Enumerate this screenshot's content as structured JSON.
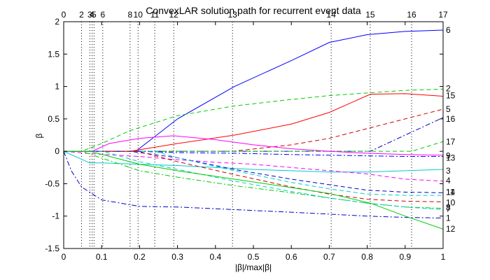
{
  "chart_data": {
    "type": "line",
    "title": "ConvexLAR solution path for recurrent event data",
    "xlabel": "|β|/max|β|",
    "ylabel": "β",
    "xlim": [
      0,
      1
    ],
    "ylim": [
      -1.5,
      2
    ],
    "x_ticks": [
      0,
      0.1,
      0.2,
      0.3,
      0.4,
      0.5,
      0.6,
      0.7,
      0.8,
      0.9,
      1
    ],
    "x_tick_labels": [
      "0",
      "0.1",
      "0.2",
      "0.3",
      "0.4",
      "0.5",
      "0.6",
      "0.7",
      "0.8",
      "0.9",
      "1"
    ],
    "y_ticks": [
      -1.5,
      -1,
      -0.5,
      0,
      0.5,
      1,
      1.5,
      2
    ],
    "y_tick_labels": [
      "-1.5",
      "-1",
      "-0.5",
      "0",
      "0.5",
      "1",
      "1.5",
      "2"
    ],
    "grid": false,
    "legend": "none",
    "step_lines": [
      {
        "x": 0,
        "label": "0"
      },
      {
        "x": 0.047,
        "label": "2"
      },
      {
        "x": 0.069,
        "label": "3"
      },
      {
        "x": 0.075,
        "label": "4"
      },
      {
        "x": 0.08,
        "label": "5"
      },
      {
        "x": 0.103,
        "label": "6"
      },
      {
        "x": 0.175,
        "label": "8"
      },
      {
        "x": 0.196,
        "label": "10"
      },
      {
        "x": 0.24,
        "label": "11"
      },
      {
        "x": 0.29,
        "label": "12"
      },
      {
        "x": 0.445,
        "label": "13"
      },
      {
        "x": 0.705,
        "label": "14"
      },
      {
        "x": 0.808,
        "label": "15"
      },
      {
        "x": 0.917,
        "label": "16"
      },
      {
        "x": 1.0,
        "label": "17"
      }
    ],
    "series": [
      {
        "label": "6",
        "color": "#0000ff",
        "dash": "solid",
        "x": [
          0,
          0.19,
          0.3,
          0.45,
          0.6,
          0.7,
          0.8,
          0.9,
          1.0
        ],
        "y": [
          0,
          0,
          0.5,
          1.0,
          1.4,
          1.68,
          1.8,
          1.85,
          1.87
        ]
      },
      {
        "label": "2",
        "color": "#00cc00",
        "dash": "dashed",
        "x": [
          0,
          0.047,
          0.1,
          0.175,
          0.3,
          0.45,
          0.6,
          0.7,
          0.8,
          0.9,
          1.0
        ],
        "y": [
          0,
          0,
          0.12,
          0.32,
          0.55,
          0.7,
          0.8,
          0.86,
          0.9,
          0.94,
          0.96
        ]
      },
      {
        "label": "15",
        "color": "#ff0000",
        "dash": "solid",
        "x": [
          0,
          0.175,
          0.3,
          0.45,
          0.6,
          0.7,
          0.808,
          0.9,
          1.0
        ],
        "y": [
          0,
          0,
          0.12,
          0.25,
          0.42,
          0.6,
          0.88,
          0.89,
          0.85
        ]
      },
      {
        "label": "5",
        "color": "#cc0000",
        "dash": "dashed",
        "x": [
          0,
          0.445,
          0.6,
          0.7,
          0.8,
          0.9,
          1.0
        ],
        "y": [
          0,
          0,
          0.1,
          0.2,
          0.35,
          0.5,
          0.65
        ]
      },
      {
        "label": "16",
        "color": "#0000cc",
        "dash": "dashdot",
        "x": [
          0,
          0.808,
          0.9,
          1.0
        ],
        "y": [
          0,
          0,
          0.25,
          0.52
        ]
      },
      {
        "label": "17",
        "color": "#00cc00",
        "dash": "dashed",
        "x": [
          0,
          0.917,
          1.0
        ],
        "y": [
          0,
          0,
          0.15
        ]
      },
      {
        "label": "9",
        "color": "#ff00ff",
        "dash": "solid",
        "x": [
          0,
          0.075,
          0.12,
          0.2,
          0.29,
          0.4,
          0.5,
          0.6,
          0.7,
          0.8,
          0.9,
          1.0
        ],
        "y": [
          0,
          0,
          0.12,
          0.2,
          0.24,
          0.18,
          0.1,
          0.04,
          0,
          -0.03,
          -0.05,
          -0.06
        ]
      },
      {
        "label": "13",
        "color": "#0000ff",
        "dash": "dashdot",
        "x": [
          0,
          0.196,
          0.3,
          0.45,
          0.6,
          0.7,
          0.8,
          0.9,
          1.0
        ],
        "y": [
          0,
          0,
          -0.02,
          -0.03,
          -0.05,
          -0.06,
          -0.07,
          -0.08,
          -0.08
        ]
      },
      {
        "label": "3",
        "color": "#00cccc",
        "dash": "solid",
        "x": [
          0,
          0.069,
          0.1,
          0.2,
          0.3,
          0.4,
          0.5,
          0.6,
          0.7,
          0.8,
          0.9,
          1.0
        ],
        "y": [
          0,
          -0.18,
          -0.18,
          -0.2,
          -0.22,
          -0.25,
          -0.28,
          -0.3,
          -0.32,
          -0.32,
          -0.3,
          -0.28
        ]
      },
      {
        "label": "4",
        "color": "#ff00ff",
        "dash": "dashed",
        "x": [
          0,
          0.08,
          0.2,
          0.3,
          0.4,
          0.5,
          0.6,
          0.7,
          0.8,
          0.9,
          1.0
        ],
        "y": [
          0,
          -0.04,
          -0.08,
          -0.13,
          -0.17,
          -0.2,
          -0.25,
          -0.3,
          -0.35,
          -0.43,
          -0.46
        ]
      },
      {
        "label": "14",
        "color": "#0000cc",
        "dash": "dashed",
        "x": [
          0,
          0.175,
          0.3,
          0.45,
          0.6,
          0.705,
          0.8,
          0.9,
          1.0
        ],
        "y": [
          0,
          0,
          -0.1,
          -0.28,
          -0.43,
          -0.52,
          -0.6,
          -0.63,
          -0.64
        ]
      },
      {
        "label": "11",
        "color": "#00cccc",
        "dash": "dashed",
        "x": [
          0,
          0.24,
          0.3,
          0.45,
          0.6,
          0.7,
          0.8,
          0.9,
          1.0
        ],
        "y": [
          0,
          0,
          -0.1,
          -0.3,
          -0.48,
          -0.58,
          -0.66,
          -0.68,
          -0.68
        ]
      },
      {
        "label": "10",
        "color": "#cc0000",
        "dash": "dashed",
        "x": [
          0,
          0.196,
          0.3,
          0.45,
          0.6,
          0.7,
          0.8,
          0.9,
          1.0
        ],
        "y": [
          0,
          0,
          -0.16,
          -0.36,
          -0.55,
          -0.66,
          -0.74,
          -0.77,
          -0.78
        ]
      },
      {
        "label": "8",
        "color": "#00cc00",
        "dash": "dashdot",
        "x": [
          0,
          0.047,
          0.2,
          0.3,
          0.45,
          0.6,
          0.7,
          0.8,
          0.9,
          1.0
        ],
        "y": [
          0,
          0,
          -0.3,
          -0.4,
          -0.53,
          -0.64,
          -0.72,
          -0.8,
          -0.86,
          -0.88
        ]
      },
      {
        "label": "7",
        "color": "#00cccc",
        "dash": "dashed",
        "x": [
          0,
          0.103,
          0.2,
          0.3,
          0.45,
          0.6,
          0.7,
          0.8,
          0.9,
          1.0
        ],
        "y": [
          0,
          0,
          -0.16,
          -0.28,
          -0.46,
          -0.62,
          -0.72,
          -0.8,
          -0.86,
          -0.9
        ]
      },
      {
        "label": "1",
        "color": "#0000cc",
        "dash": "dashdot",
        "x": [
          0,
          0.02,
          0.047,
          0.1,
          0.2,
          0.3,
          0.45,
          0.6,
          0.7,
          0.8,
          0.9,
          1.0
        ],
        "y": [
          0,
          -0.3,
          -0.55,
          -0.75,
          -0.85,
          -0.86,
          -0.9,
          -0.94,
          -0.97,
          -1.0,
          -1.02,
          -1.03
        ]
      },
      {
        "label": "12",
        "color": "#00cc00",
        "dash": "solid",
        "x": [
          0,
          0.069,
          0.2,
          0.3,
          0.45,
          0.6,
          0.7,
          0.808,
          0.9,
          1.0
        ],
        "y": [
          0,
          0,
          -0.2,
          -0.3,
          -0.43,
          -0.56,
          -0.65,
          -0.8,
          -1.0,
          -1.2
        ]
      }
    ],
    "end_labels": [
      {
        "text": "6",
        "y": 1.87
      },
      {
        "text": "2",
        "y": 0.97
      },
      {
        "text": "15",
        "y": 0.86
      },
      {
        "text": "5",
        "y": 0.65
      },
      {
        "text": "16",
        "y": 0.5
      },
      {
        "text": "17",
        "y": 0.15
      },
      {
        "text": "9",
        "y": -0.07
      },
      {
        "text": "13",
        "y": -0.1
      },
      {
        "text": "3",
        "y": -0.3
      },
      {
        "text": "4",
        "y": -0.45
      },
      {
        "text": "14",
        "y": -0.63
      },
      {
        "text": "11",
        "y": -0.63
      },
      {
        "text": "10",
        "y": -0.79
      },
      {
        "text": "8",
        "y": -0.87
      },
      {
        "text": "7",
        "y": -0.89
      },
      {
        "text": "1",
        "y": -1.03
      },
      {
        "text": "12",
        "y": -1.2
      }
    ]
  }
}
